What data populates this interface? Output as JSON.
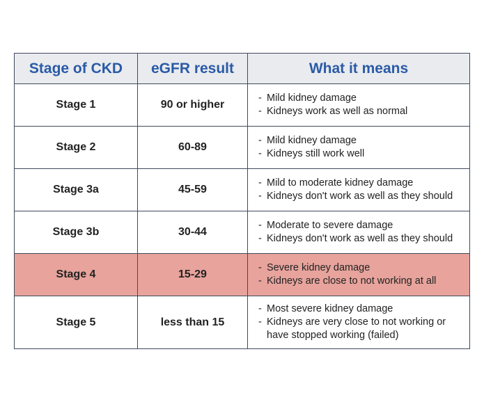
{
  "table": {
    "headers": [
      "Stage of CKD",
      "eGFR result",
      "What it means"
    ],
    "rows": [
      [
        "Stage 1",
        "90 or higher",
        [
          "Mild kidney damage",
          "Kidneys work as well as normal"
        ]
      ],
      [
        "Stage 2",
        "60-89",
        [
          "Mild kidney damage",
          "Kidneys still work well"
        ]
      ],
      [
        "Stage 3a",
        "45-59",
        [
          "Mild to moderate kidney damage",
          "Kidneys don't work as well as they should"
        ]
      ],
      [
        "Stage 3b",
        "30-44",
        [
          "Moderate to severe damage",
          "Kidneys don't work as well as they should"
        ]
      ],
      [
        "Stage 4",
        "15-29",
        [
          "Severe kidney damage",
          "Kidneys are close to not working at all"
        ]
      ],
      [
        "Stage 5",
        "less than 15",
        [
          "Most severe kidney damage",
          "Kidneys are very close to not working or have stopped working (failed)"
        ]
      ]
    ]
  }
}
